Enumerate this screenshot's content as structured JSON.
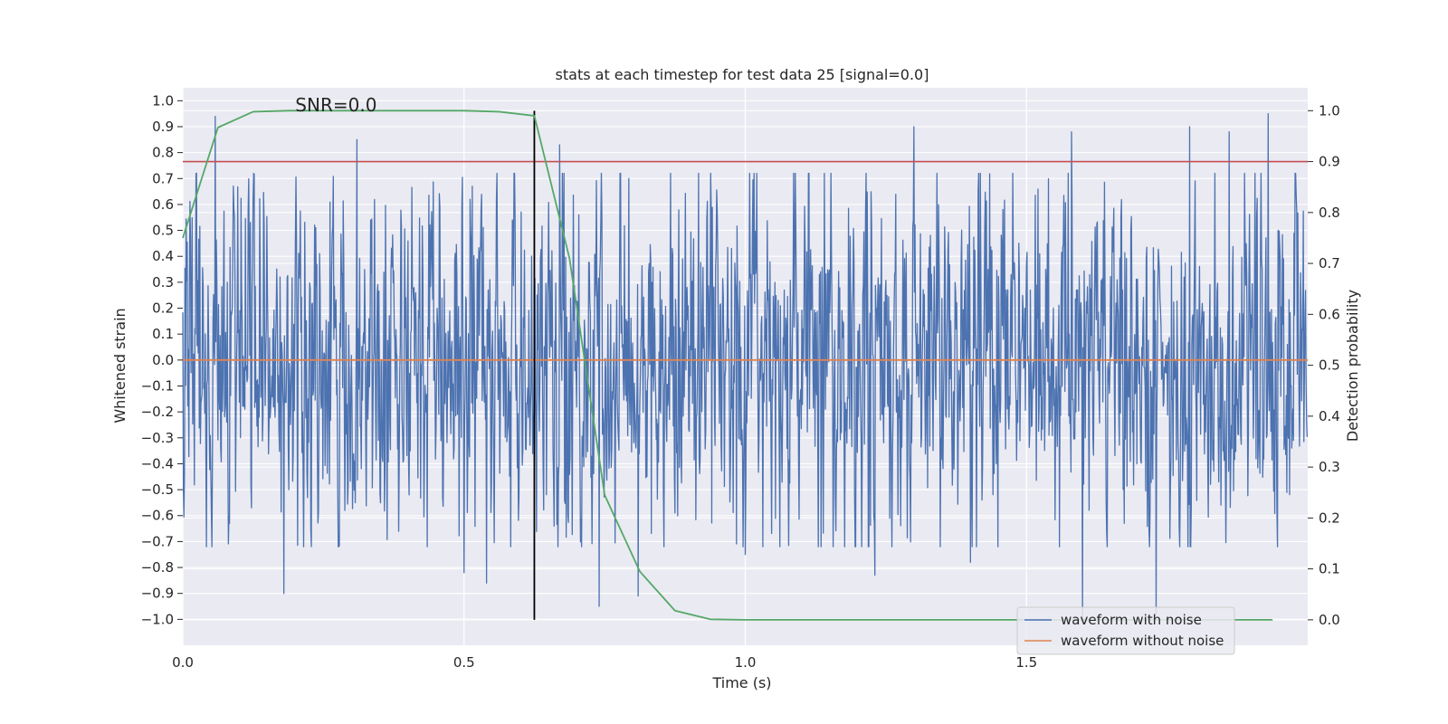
{
  "chart_data": {
    "type": "line",
    "title": "stats at each timestep for test data 25 [signal=0.0]",
    "xlabel": "Time (s)",
    "ylabel": "Whitened strain",
    "y2label": "Detection probability",
    "xlim": [
      0.0,
      2.0
    ],
    "ylim": [
      -1.1,
      1.05
    ],
    "y2lim": [
      -0.05,
      1.045
    ],
    "xticks": [
      0.0,
      0.5,
      1.0,
      1.5
    ],
    "xtick_labels": [
      "0.0",
      "0.5",
      "1.0",
      "1.5"
    ],
    "yticks": [
      -1.0,
      -0.9,
      -0.8,
      -0.7,
      -0.6,
      -0.5,
      -0.4,
      -0.3,
      -0.2,
      -0.1,
      0.0,
      0.1,
      0.2,
      0.3,
      0.4,
      0.5,
      0.6,
      0.7,
      0.8,
      0.9,
      1.0
    ],
    "ytick_labels": [
      "−1.0",
      "−0.9",
      "−0.8",
      "−0.7",
      "−0.6",
      "−0.5",
      "−0.4",
      "−0.3",
      "−0.2",
      "−0.1",
      "0.0",
      "0.1",
      "0.2",
      "0.3",
      "0.4",
      "0.5",
      "0.6",
      "0.7",
      "0.8",
      "0.9",
      "1.0"
    ],
    "y2ticks": [
      0.0,
      0.1,
      0.2,
      0.3,
      0.4,
      0.5,
      0.6,
      0.7,
      0.8,
      0.9,
      1.0
    ],
    "y2tick_labels": [
      "0.0",
      "0.1",
      "0.2",
      "0.3",
      "0.4",
      "0.5",
      "0.6",
      "0.7",
      "0.8",
      "0.9",
      "1.0"
    ],
    "annotation": "SNR=0.0",
    "annotation_at": {
      "x": 0.2,
      "y": 0.96
    },
    "legend_location": "lower-right",
    "noisy_series": {
      "name": "waveform with noise",
      "color": "#4c72b0",
      "n_samples": 2048,
      "x_start": 0.0,
      "x_end": 1.999,
      "amplitude": 0.33,
      "seed": 25,
      "peaks": [
        {
          "x": 0.058,
          "y": 0.94
        },
        {
          "x": 0.31,
          "y": 0.85
        },
        {
          "x": 0.18,
          "y": -0.9
        },
        {
          "x": 0.5,
          "y": -0.82
        },
        {
          "x": 0.54,
          "y": -0.86
        },
        {
          "x": 0.67,
          "y": 0.83
        },
        {
          "x": 0.74,
          "y": -0.95
        },
        {
          "x": 0.81,
          "y": -0.91
        },
        {
          "x": 1.0,
          "y": -0.75
        },
        {
          "x": 1.3,
          "y": 0.9
        },
        {
          "x": 1.23,
          "y": -0.83
        },
        {
          "x": 1.58,
          "y": 0.88
        },
        {
          "x": 1.6,
          "y": -1.0
        },
        {
          "x": 1.73,
          "y": -0.98
        },
        {
          "x": 1.79,
          "y": 0.9
        },
        {
          "x": 1.86,
          "y": 0.88
        },
        {
          "x": 1.93,
          "y": 0.95
        },
        {
          "x": 1.4,
          "y": -0.78
        }
      ]
    },
    "clean_series": {
      "name": "waveform without noise",
      "color": "#dd8452",
      "value": 0.0
    },
    "probability_series": {
      "name": "Detection probability",
      "color": "#55a868",
      "x": [
        0.0,
        0.0625,
        0.125,
        0.1875,
        0.25,
        0.3125,
        0.375,
        0.4375,
        0.5,
        0.5625,
        0.625,
        0.6875,
        0.75,
        0.8125,
        0.875,
        0.9375,
        1.0,
        1.0625,
        1.125,
        1.1875,
        1.25,
        1.3125,
        1.375,
        1.4375,
        1.5,
        1.5625,
        1.625,
        1.6875,
        1.75,
        1.8125,
        1.875,
        1.9375
      ],
      "y": [
        0.75,
        0.967,
        0.998,
        1.0,
        1.0,
        1.0,
        1.0,
        1.0,
        1.0,
        0.998,
        0.99,
        0.71,
        0.245,
        0.095,
        0.018,
        0.001,
        0.0,
        0.0,
        0.0,
        0.0,
        0.0,
        0.0,
        0.0,
        0.0,
        0.0,
        0.0,
        0.0,
        0.0,
        0.0,
        0.0,
        0.0,
        0.0
      ]
    },
    "threshold_line": {
      "value": 0.9,
      "color": "#c44e52"
    },
    "vertical_marker": {
      "x": 0.625,
      "y_from": 0.0,
      "y_to": 1.0,
      "color": "#000000"
    }
  }
}
